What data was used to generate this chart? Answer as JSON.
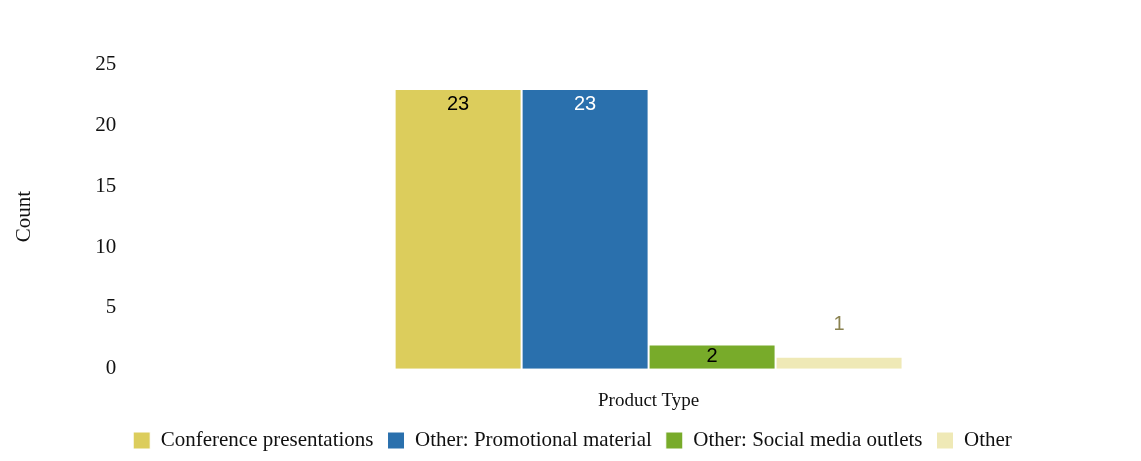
{
  "chart_data": {
    "type": "bar",
    "xlabel": "Product Type",
    "ylabel": "Count",
    "categories": [
      null
    ],
    "series": [
      {
        "name": "Conference presentations",
        "color": "#dccd5c",
        "values": [
          23
        ]
      },
      {
        "name": "Other: Promotional material",
        "color": "#2a70ad",
        "values": [
          23
        ]
      },
      {
        "name": "Other: Social media outlets",
        "color": "#78ab2a",
        "values": [
          2
        ]
      },
      {
        "name": "Other",
        "color": "#efe9b6",
        "values": [
          1
        ]
      }
    ],
    "ylim": [
      0,
      25
    ],
    "yticks": [
      0,
      5,
      10,
      15,
      20,
      25
    ],
    "grid": false,
    "legend": "bottom",
    "data_labels": true
  }
}
